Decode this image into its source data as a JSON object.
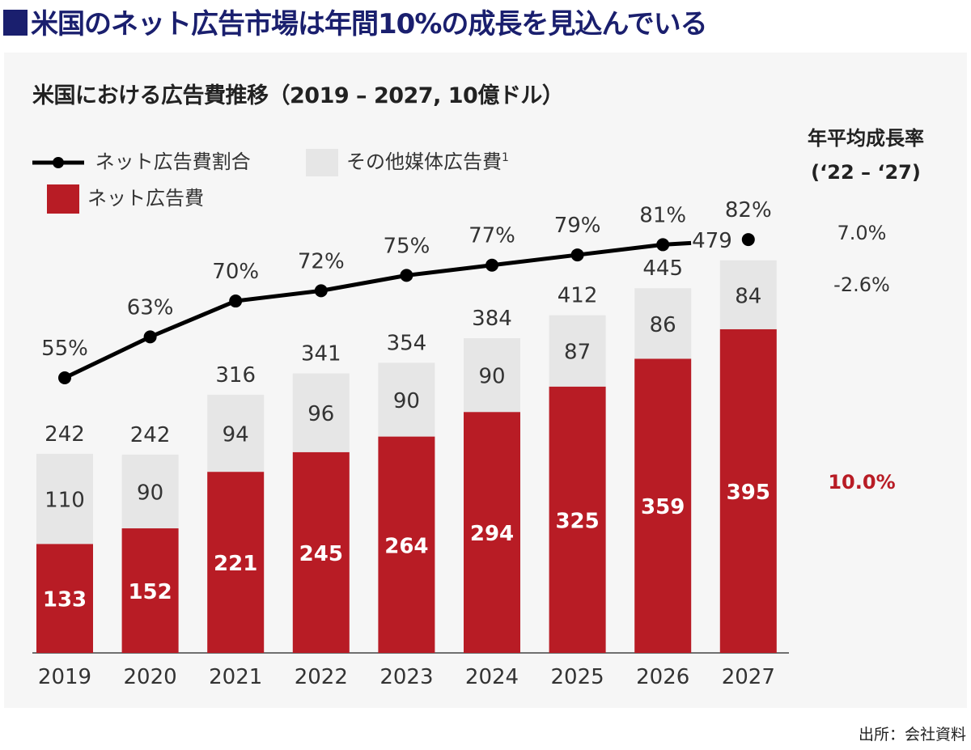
{
  "headline": "米国のネット広告市場は年間10%の成長を見込んでいる",
  "source": "出所：会社資料",
  "colors": {
    "net": "#b81c25",
    "other": "#e6e6e6",
    "line": "#000000",
    "headline": "#1a1f6e",
    "cagr_net": "#b81c25"
  },
  "cagr": {
    "title_line1": "年平均成長率",
    "title_line2": "(‘22 – ‘27)",
    "share": "7.0%",
    "other": "-2.6%",
    "net": "10.0%"
  },
  "chart_data": {
    "type": "bar",
    "stacked": true,
    "title": "米国における広告費推移（2019 – 2027, 10億ドル）",
    "categories": [
      "2019",
      "2020",
      "2021",
      "2022",
      "2023",
      "2024",
      "2025",
      "2026",
      "2027"
    ],
    "series": [
      {
        "name": "ネット広告費",
        "values": [
          133,
          152,
          221,
          245,
          264,
          294,
          325,
          359,
          395
        ]
      },
      {
        "name": "その他媒体広告費¹",
        "values": [
          110,
          90,
          94,
          96,
          90,
          90,
          87,
          86,
          84
        ]
      }
    ],
    "totals": [
      242,
      242,
      316,
      341,
      354,
      384,
      412,
      445,
      479
    ],
    "line_series": {
      "name": "ネット広告費割合",
      "values": [
        55,
        63,
        70,
        72,
        75,
        77,
        79,
        81,
        82
      ],
      "unit": "%"
    },
    "legend": {
      "share": "ネット広告費割合",
      "other": "その他媒体広告費",
      "other_sup": "1",
      "net": "ネット広告費"
    },
    "grid": false
  }
}
